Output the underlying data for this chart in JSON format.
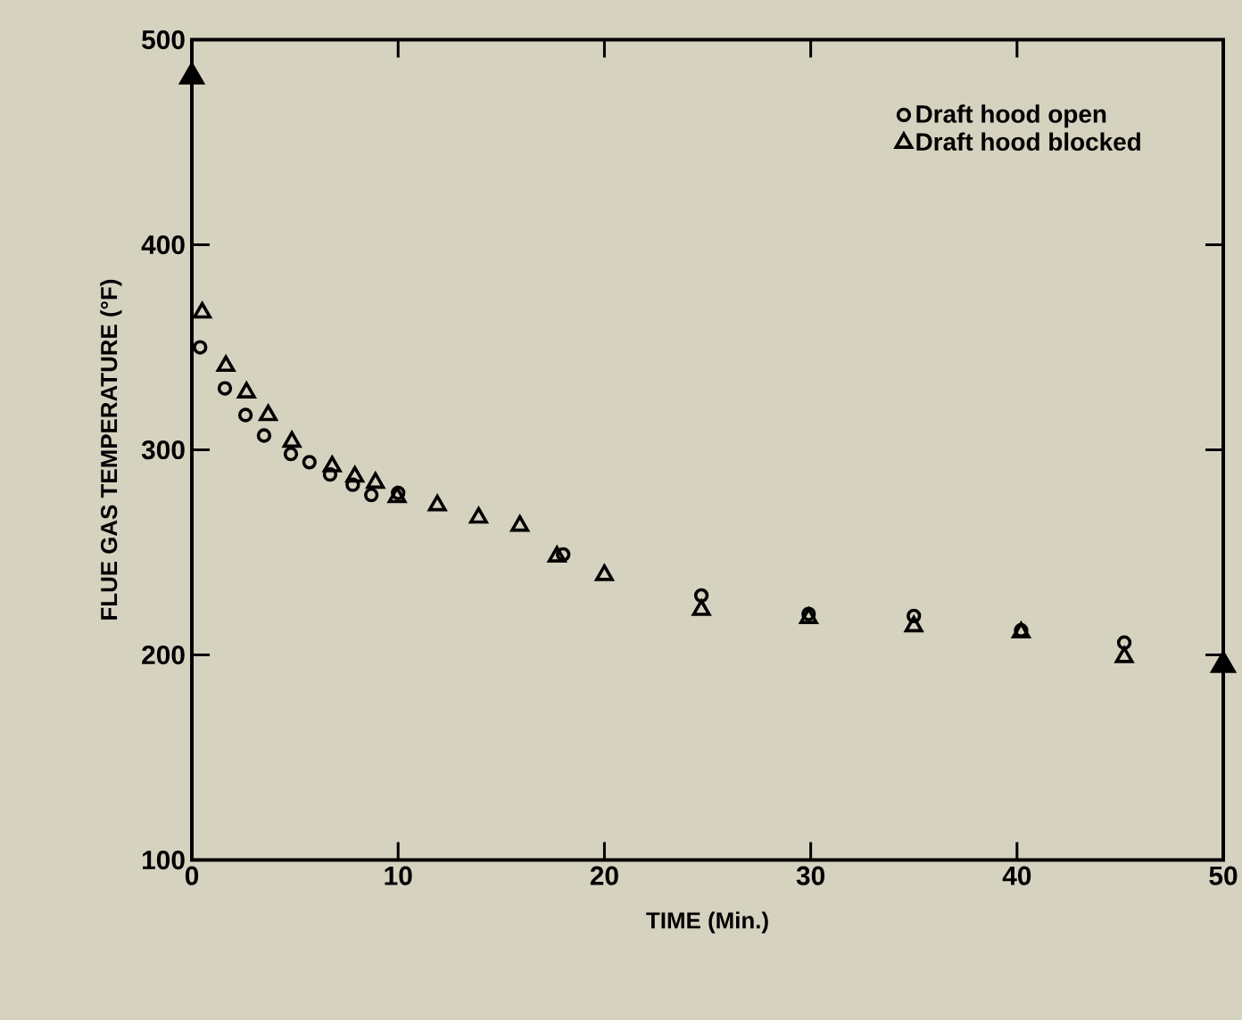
{
  "chart_data": {
    "type": "scatter",
    "xlabel": "TIME (Min.)",
    "ylabel": "FLUE GAS TEMPERATURE (°F)",
    "xlim": [
      0,
      50
    ],
    "ylim": [
      100,
      500
    ],
    "xticks": [
      0,
      10,
      20,
      30,
      40,
      50
    ],
    "yticks": [
      100,
      200,
      300,
      400,
      500
    ],
    "grid": false,
    "legend": "top right",
    "series": [
      {
        "name": "Draft hood open",
        "color": "#000000",
        "marker": "circle",
        "x": [
          0.4,
          1.6,
          2.6,
          3.5,
          4.8,
          5.7,
          6.7,
          7.8,
          8.7,
          10,
          12,
          14,
          16,
          18,
          20,
          24.7,
          29.9,
          35,
          40.2,
          45.2
        ],
        "values": [
          350,
          330,
          317,
          307,
          298,
          294,
          288,
          283,
          278,
          279,
          null,
          null,
          null,
          249,
          null,
          229,
          220,
          219,
          212,
          206
        ]
      },
      {
        "name": "Draft hood blocked",
        "color": "#000000",
        "marker": "triangle",
        "x": [
          0.5,
          1.65,
          2.65,
          3.7,
          4.85,
          6.8,
          7.9,
          8.9,
          9.95,
          11.9,
          13.9,
          15.9,
          17.7,
          20,
          24.7,
          29.9,
          35,
          40.2,
          45.2
        ],
        "values": [
          367,
          341,
          328,
          317,
          304,
          292,
          287,
          284,
          277,
          273,
          267,
          263,
          248,
          239,
          222,
          218,
          214,
          211,
          199
        ]
      },
      {
        "color": "#000000",
        "marker": "triangle*",
        "x": [
          0,
          50
        ],
        "values": [
          482,
          195
        ]
      }
    ]
  }
}
